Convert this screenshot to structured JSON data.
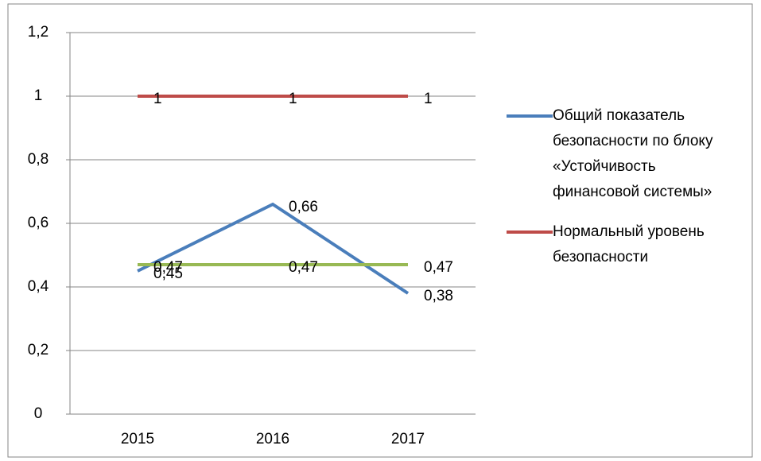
{
  "chart_data": {
    "type": "line",
    "categories": [
      "2015",
      "2016",
      "2017"
    ],
    "series": [
      {
        "name": "Общий показатель безопасности по блоку «Устойчивость финансовой системы»",
        "color": "#4a7ebb",
        "values": [
          0.45,
          0.66,
          0.38
        ],
        "value_labels": [
          "0,45",
          "0,66",
          "0,38"
        ]
      },
      {
        "name": "Нормальный уровень безопасности",
        "color": "#be4b48",
        "values": [
          1,
          1,
          1
        ]
      },
      {
        "color": "#98b954",
        "values": [
          0.47,
          0.47,
          0.47
        ],
        "value_labels": [
          "0,47",
          "0,47",
          "0,47"
        ]
      }
    ],
    "ylim": [
      0,
      1.2
    ],
    "yticks": [
      0,
      {
        "value": 0.2,
        "label": "0,2"
      },
      {
        "value": 0.4,
        "label": "0,4"
      },
      {
        "value": 0.6,
        "label": "0,6"
      },
      {
        "value": 0.8,
        "label": "0,8"
      },
      1,
      {
        "value": 1.2,
        "label": "1,2"
      }
    ],
    "grid": true,
    "legend": "right"
  }
}
